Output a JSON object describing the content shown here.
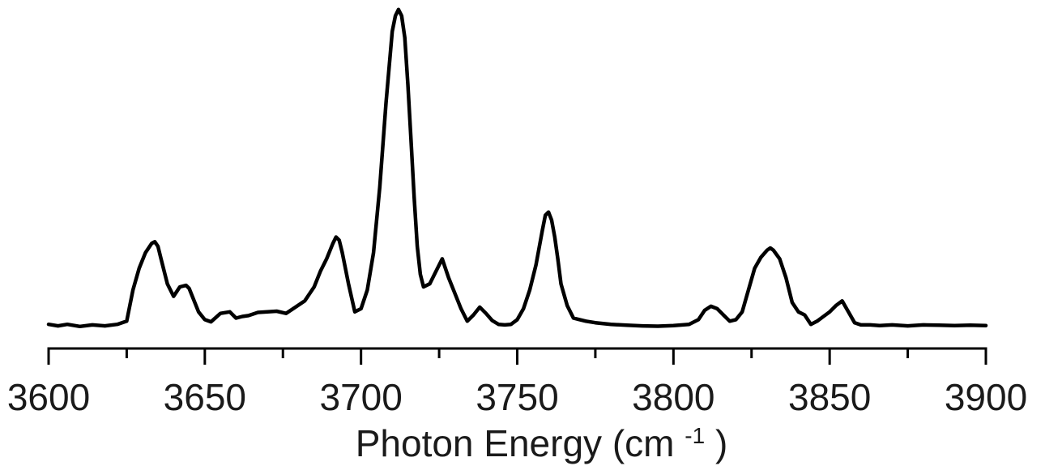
{
  "chart_data": {
    "type": "line",
    "title": "",
    "xlabel": "Photon Energy (cm",
    "xlabel_sup": "-1",
    "xlabel_close": ")",
    "ylabel": "",
    "xlim": [
      3600,
      3900
    ],
    "ylim": [
      0,
      1.03
    ],
    "x_ticks_major": [
      3600,
      3650,
      3700,
      3750,
      3800,
      3850,
      3900
    ],
    "x_tick_labels": [
      "3600",
      "3650",
      "3700",
      "3750",
      "3800",
      "3850",
      "3900"
    ],
    "x_ticks_minor": [
      3625,
      3675,
      3725,
      3775,
      3825,
      3875
    ],
    "y_axis_visible": false,
    "grid": false,
    "legend": "none",
    "line_color": "#000000",
    "series": [
      {
        "x": [
          3600,
          3603,
          3606,
          3610,
          3614,
          3618,
          3622,
          3625,
          3627,
          3629,
          3631,
          3633,
          3634,
          3635,
          3636,
          3638,
          3640,
          3642,
          3644,
          3645,
          3646,
          3648,
          3650,
          3652,
          3655,
          3658,
          3660,
          3662,
          3664,
          3667,
          3670,
          3673,
          3676,
          3679,
          3682,
          3685,
          3687,
          3689,
          3691,
          3692,
          3693,
          3694,
          3696,
          3698,
          3700,
          3702,
          3704,
          3706,
          3708,
          3710,
          3711,
          3712,
          3713,
          3714,
          3715,
          3716,
          3717,
          3718,
          3719,
          3720,
          3722,
          3724,
          3726,
          3727,
          3728,
          3730,
          3732,
          3734,
          3736,
          3738,
          3740,
          3742,
          3744,
          3746,
          3748,
          3750,
          3752,
          3754,
          3756,
          3758,
          3759,
          3760,
          3761,
          3762,
          3763,
          3764,
          3766,
          3768,
          3770,
          3772,
          3775,
          3780,
          3785,
          3790,
          3795,
          3800,
          3805,
          3808,
          3810,
          3812,
          3814,
          3816,
          3818,
          3820,
          3822,
          3824,
          3826,
          3828,
          3830,
          3831,
          3832,
          3834,
          3836,
          3838,
          3840,
          3842,
          3844,
          3846,
          3848,
          3850,
          3852,
          3854,
          3856,
          3858,
          3860,
          3863,
          3866,
          3870,
          3875,
          3880,
          3885,
          3890,
          3895,
          3900
        ],
        "y": [
          0.01,
          0.005,
          0.01,
          0.003,
          0.008,
          0.005,
          0.01,
          0.02,
          0.12,
          0.19,
          0.24,
          0.27,
          0.275,
          0.26,
          0.22,
          0.14,
          0.1,
          0.13,
          0.135,
          0.125,
          0.1,
          0.05,
          0.025,
          0.018,
          0.045,
          0.05,
          0.03,
          0.035,
          0.038,
          0.048,
          0.05,
          0.052,
          0.045,
          0.065,
          0.085,
          0.13,
          0.18,
          0.22,
          0.27,
          0.29,
          0.28,
          0.24,
          0.14,
          0.05,
          0.06,
          0.12,
          0.24,
          0.45,
          0.72,
          0.95,
          1.0,
          1.02,
          1.0,
          0.93,
          0.78,
          0.6,
          0.42,
          0.26,
          0.17,
          0.13,
          0.14,
          0.18,
          0.22,
          0.19,
          0.16,
          0.11,
          0.06,
          0.02,
          0.04,
          0.065,
          0.045,
          0.022,
          0.01,
          0.008,
          0.01,
          0.025,
          0.06,
          0.12,
          0.2,
          0.31,
          0.36,
          0.37,
          0.345,
          0.29,
          0.22,
          0.14,
          0.07,
          0.03,
          0.025,
          0.02,
          0.015,
          0.01,
          0.007,
          0.005,
          0.004,
          0.006,
          0.01,
          0.025,
          0.055,
          0.068,
          0.06,
          0.04,
          0.02,
          0.025,
          0.05,
          0.12,
          0.19,
          0.225,
          0.248,
          0.255,
          0.248,
          0.22,
          0.16,
          0.08,
          0.05,
          0.04,
          0.01,
          0.02,
          0.035,
          0.05,
          0.07,
          0.085,
          0.05,
          0.015,
          0.008,
          0.008,
          0.006,
          0.008,
          0.005,
          0.008,
          0.007,
          0.006,
          0.007,
          0.006
        ]
      }
    ]
  }
}
